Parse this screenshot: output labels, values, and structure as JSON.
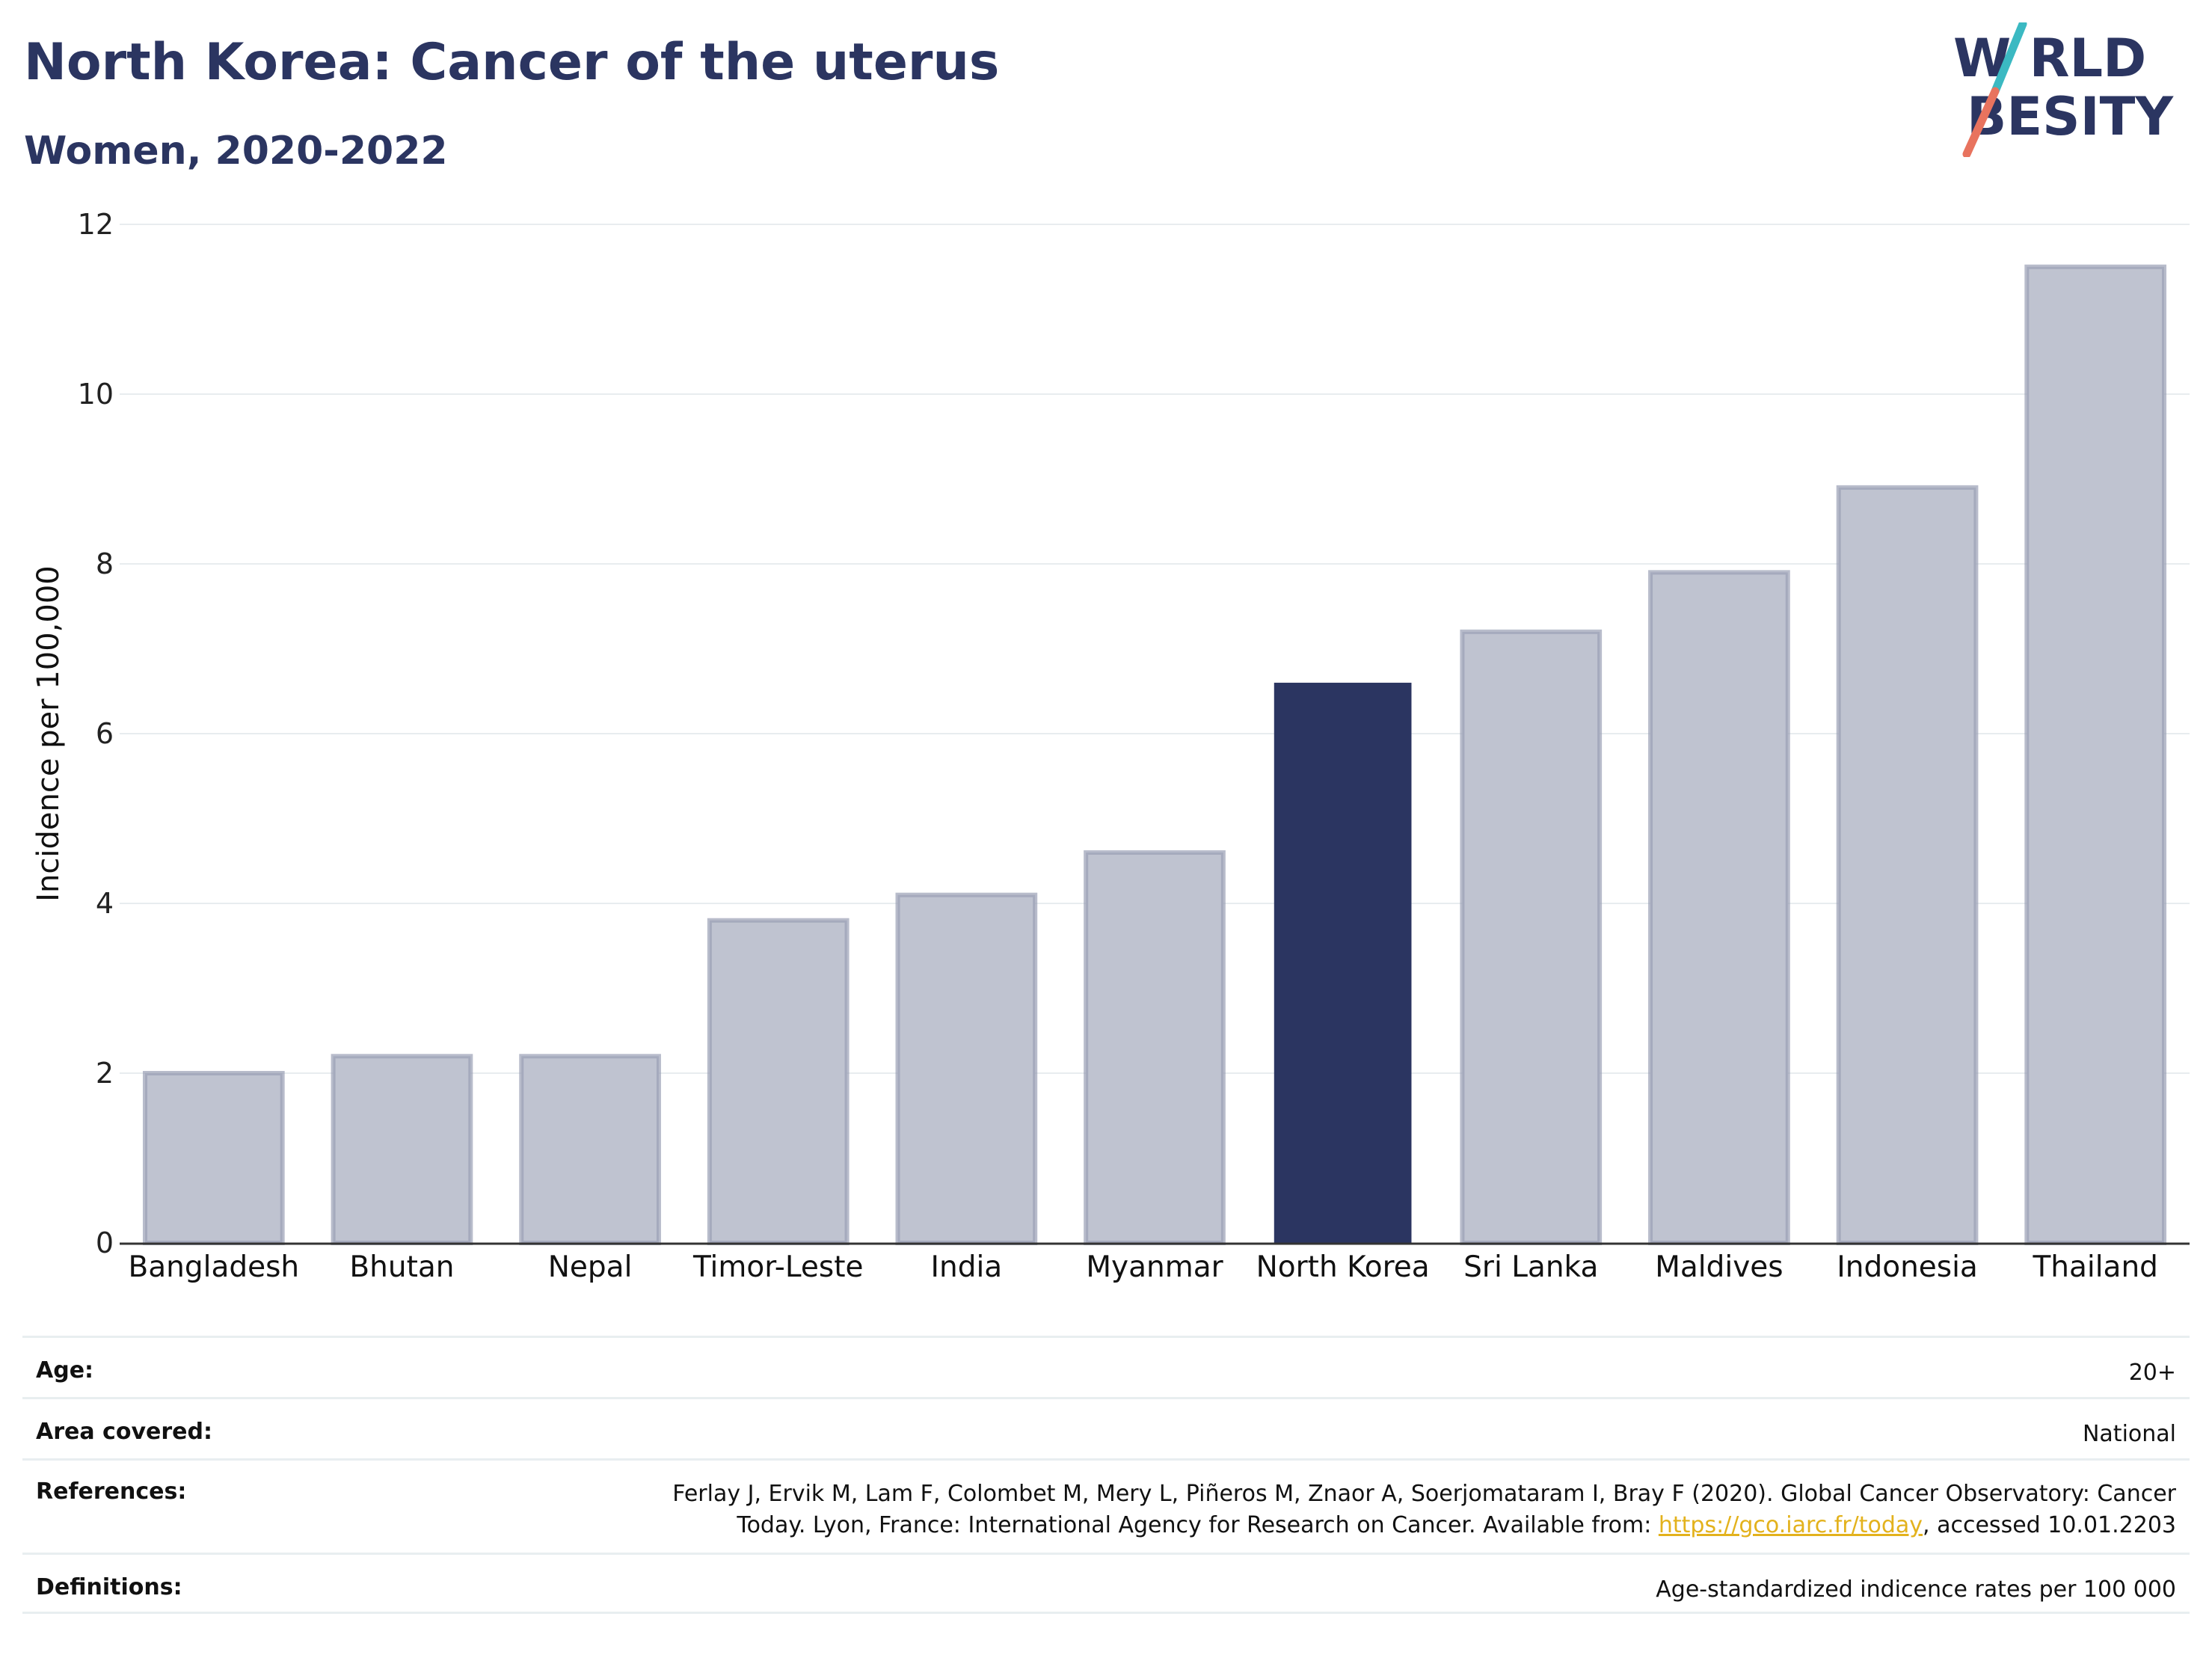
{
  "header": {
    "title": "North Korea: Cancer of the uterus",
    "subtitle": "Women, 2020-2022"
  },
  "logo": {
    "line1": "W RLD",
    "line2": "BESITY",
    "colors": {
      "text": "#2b3561",
      "slash_top": "#3bb9c2",
      "slash_bottom": "#e8735e"
    }
  },
  "colors": {
    "highlight": "#2b3561",
    "bar": "#bfc3d0",
    "bar_edge": "#9aa0b5",
    "grid": "#e8ecef",
    "axis": "#333333",
    "link": "#e3b21d"
  },
  "chart_data": {
    "type": "bar",
    "categories": [
      "Bangladesh",
      "Bhutan",
      "Nepal",
      "Timor-Leste",
      "India",
      "Myanmar",
      "North Korea",
      "Sri Lanka",
      "Maldives",
      "Indonesia",
      "Thailand"
    ],
    "values": [
      2.0,
      2.2,
      2.2,
      3.8,
      4.1,
      4.6,
      6.6,
      7.2,
      7.9,
      8.9,
      11.5
    ],
    "highlight": "North Korea",
    "ylabel": "Incidence per 100,000",
    "xlabel": "",
    "ylim": [
      0,
      12
    ],
    "yticks": [
      0,
      2,
      4,
      6,
      8,
      10,
      12
    ],
    "grid": true
  },
  "info": {
    "rows": [
      {
        "label": "Age:",
        "value": "20+"
      },
      {
        "label": "Area covered:",
        "value": "National"
      },
      {
        "label": "References:",
        "value_line1": "Ferlay J, Ervik M, Lam F, Colombet M, Mery L, Piñeros M, Znaor A, Soerjomataram I, Bray F (2020). Global Cancer Observatory: Cancer",
        "value_line2_prefix": "Today. Lyon, France: International Agency for Research on Cancer. Available from: ",
        "link_text": "https://gco.iarc.fr/today",
        "value_line2_suffix": ", accessed 10.01.2203"
      },
      {
        "label": "Definitions:",
        "value": "Age-standardized indicence rates per 100 000"
      }
    ]
  }
}
